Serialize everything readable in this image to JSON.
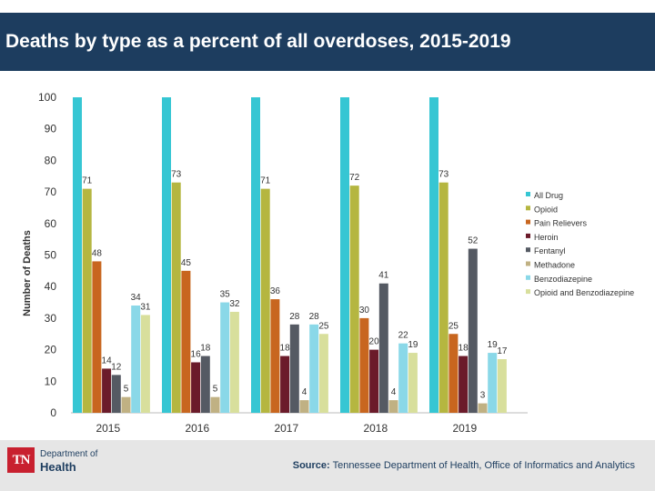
{
  "header": {
    "title": "Deaths by type as a percent of all overdoses, 2015-2019"
  },
  "footer": {
    "logo_mark": "TN",
    "logo_dept": "Department of",
    "logo_name": "Health",
    "source_label": "Source:",
    "source_text": "Tennessee Department of Health, Office of Informatics and Analytics"
  },
  "chart_data": {
    "type": "bar",
    "title": "Deaths by type as a percent of all overdoses, 2015-2019",
    "xlabel": "",
    "ylabel": "Number of Deaths",
    "ylim": [
      0,
      100
    ],
    "yticks": [
      0,
      10,
      20,
      30,
      40,
      50,
      60,
      70,
      80,
      90,
      100
    ],
    "grid": false,
    "legend_position": "right",
    "categories": [
      "2015",
      "2016",
      "2017",
      "2018",
      "2019"
    ],
    "series": [
      {
        "name": "All Drug",
        "color": "#36c6d3",
        "values": [
          100,
          100,
          100,
          100,
          100
        ],
        "labels": [
          "",
          "",
          "",
          "",
          ""
        ]
      },
      {
        "name": "Opioid",
        "color": "#b5b640",
        "values": [
          71,
          73,
          71,
          72,
          73
        ],
        "labels": [
          "71",
          "73",
          "71",
          "72",
          "73"
        ]
      },
      {
        "name": "Pain Relievers",
        "color": "#c8661f",
        "values": [
          48,
          45,
          36,
          30,
          25
        ],
        "labels": [
          "48",
          "45",
          "36",
          "30",
          "25"
        ]
      },
      {
        "name": "Heroin",
        "color": "#6b1b2a",
        "values": [
          14,
          16,
          18,
          20,
          18
        ],
        "labels": [
          "14",
          "16",
          "18",
          "20",
          "18"
        ]
      },
      {
        "name": "Fentanyl",
        "color": "#555a63",
        "values": [
          12,
          18,
          28,
          41,
          52
        ],
        "labels": [
          "12",
          "18",
          "28",
          "41",
          "52"
        ]
      },
      {
        "name": "Methadone",
        "color": "#c0b183",
        "values": [
          5,
          5,
          4,
          4,
          3
        ],
        "labels": [
          "5",
          "5",
          "4",
          "4",
          "3"
        ]
      },
      {
        "name": "Benzodiazepine",
        "color": "#8ad8e8",
        "values": [
          34,
          35,
          28,
          22,
          19
        ],
        "labels": [
          "34",
          "35",
          "28",
          "22",
          "19"
        ]
      },
      {
        "name": "Opioid and Benzodiazepine",
        "color": "#d8df9c",
        "values": [
          31,
          32,
          25,
          19,
          17
        ],
        "labels": [
          "31",
          "32",
          "25",
          "19",
          "17"
        ]
      }
    ]
  }
}
